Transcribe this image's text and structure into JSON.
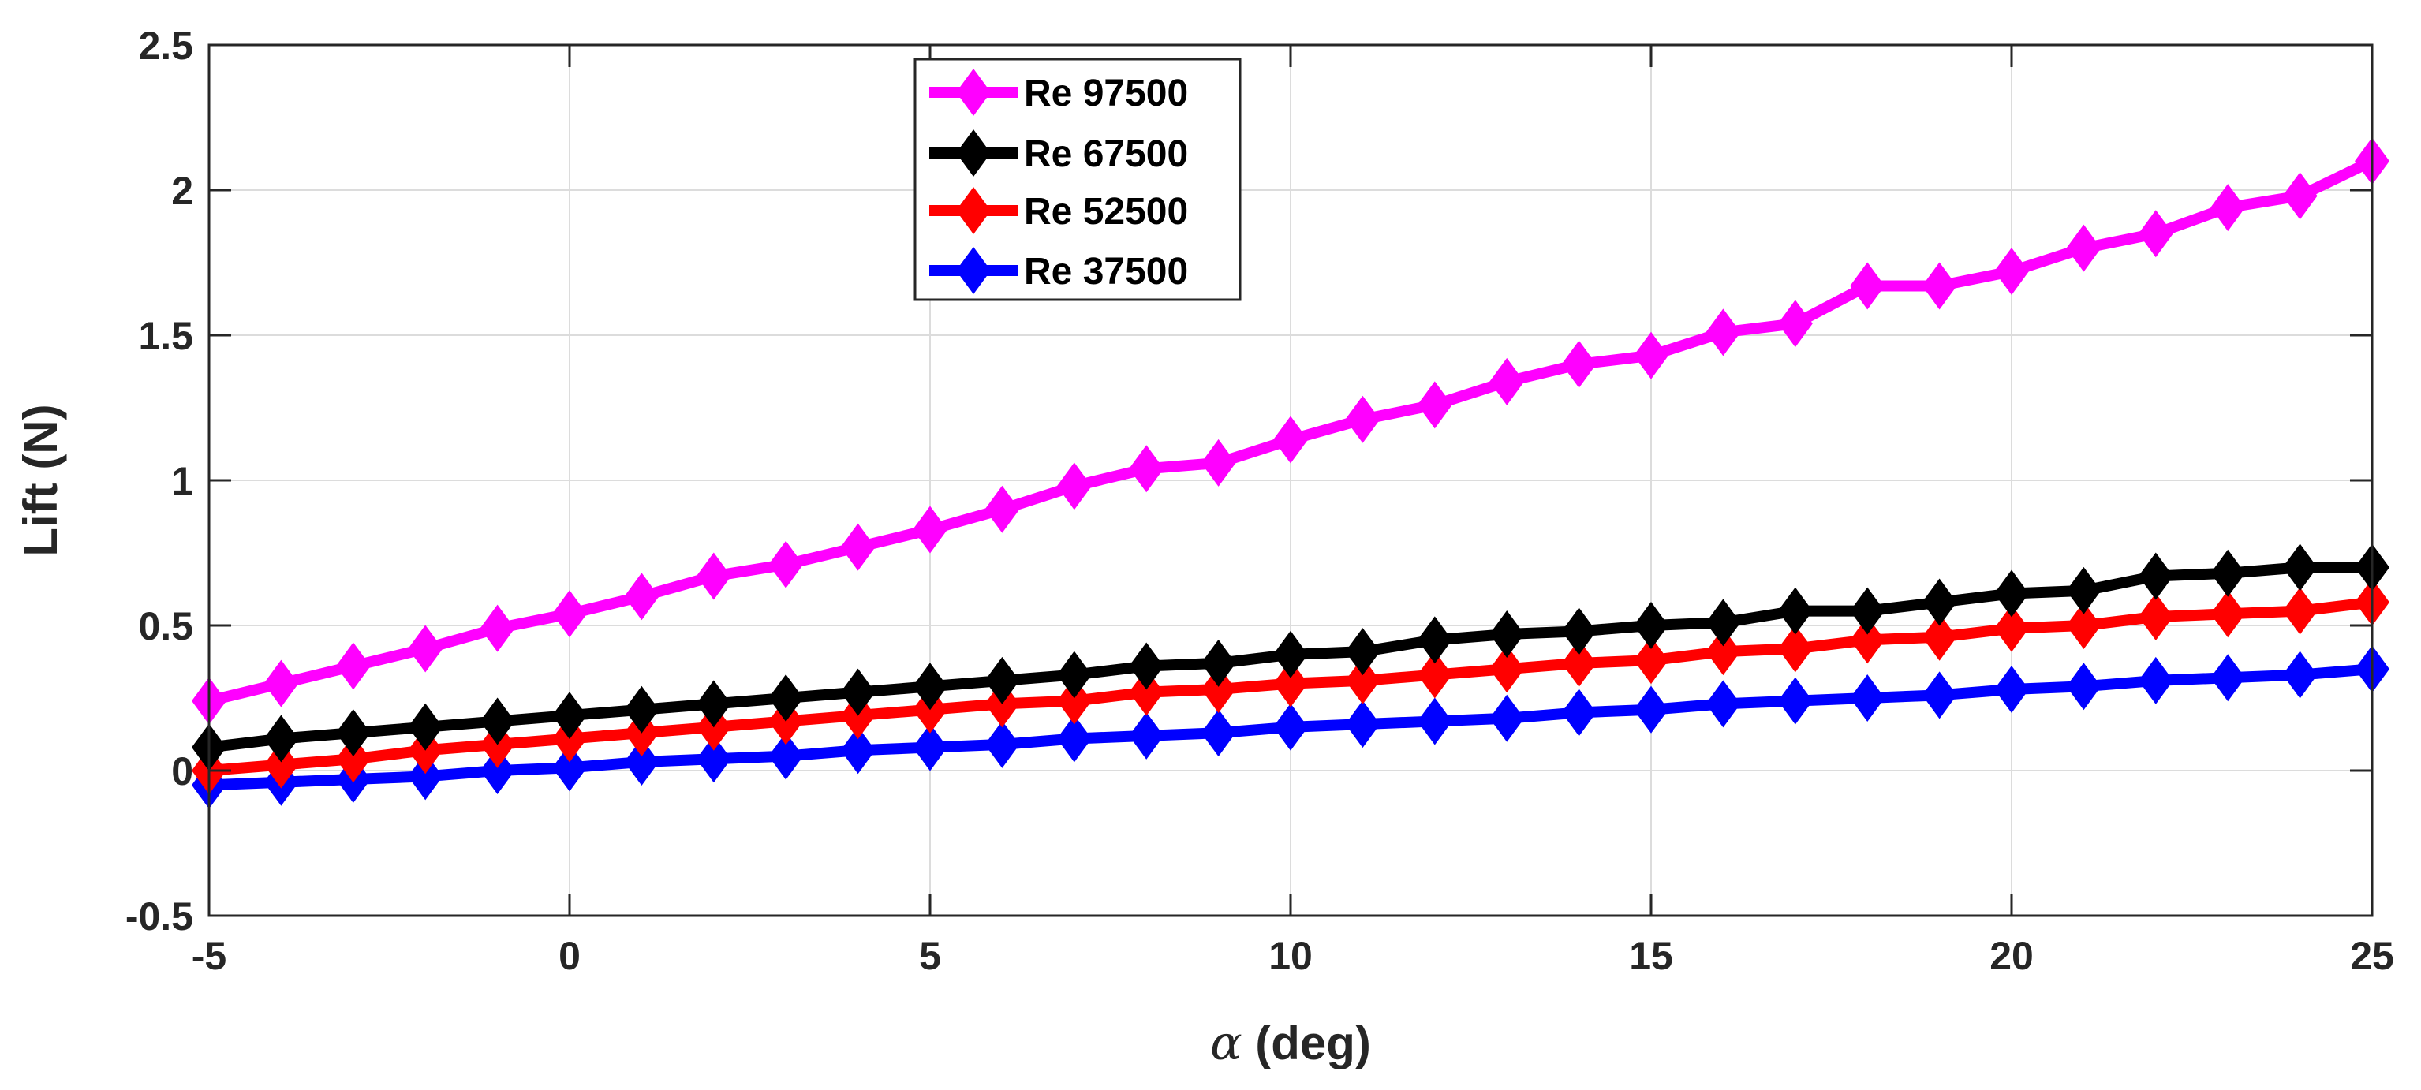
{
  "chart_data": {
    "type": "line",
    "title": "",
    "xlabel_symbol": "α",
    "xlabel_text": "(deg)",
    "ylabel": "Lift (N)",
    "xlim": [
      -5,
      25
    ],
    "ylim": [
      -0.5,
      2.5
    ],
    "xticks": [
      -5,
      0,
      5,
      10,
      15,
      20,
      25
    ],
    "yticks": [
      -0.5,
      0,
      0.5,
      1,
      1.5,
      2,
      2.5
    ],
    "xtick_labels": [
      "-5",
      "0",
      "5",
      "10",
      "15",
      "20",
      "25"
    ],
    "ytick_labels": [
      "-0.5",
      "0",
      "0.5",
      "1",
      "1.5",
      "2",
      "2.5"
    ],
    "grid": true,
    "legend_position": "top-center",
    "x": [
      -5,
      -4,
      -3,
      -2,
      -1,
      0,
      1,
      2,
      3,
      4,
      5,
      6,
      7,
      8,
      9,
      10,
      11,
      12,
      13,
      14,
      15,
      16,
      17,
      18,
      19,
      20,
      21,
      22,
      23,
      24,
      25
    ],
    "series": [
      {
        "name": "Re 97500",
        "color": "#ff00ff",
        "values": [
          0.24,
          0.3,
          0.36,
          0.42,
          0.49,
          0.54,
          0.6,
          0.67,
          0.71,
          0.77,
          0.83,
          0.9,
          0.98,
          1.04,
          1.06,
          1.14,
          1.21,
          1.26,
          1.34,
          1.4,
          1.43,
          1.51,
          1.54,
          1.67,
          1.67,
          1.72,
          1.8,
          1.85,
          1.94,
          1.98,
          2.1
        ]
      },
      {
        "name": "Re 67500",
        "color": "#000000",
        "values": [
          0.08,
          0.11,
          0.13,
          0.15,
          0.17,
          0.19,
          0.21,
          0.23,
          0.25,
          0.27,
          0.29,
          0.31,
          0.33,
          0.36,
          0.37,
          0.4,
          0.41,
          0.45,
          0.47,
          0.48,
          0.5,
          0.51,
          0.55,
          0.55,
          0.58,
          0.61,
          0.62,
          0.67,
          0.68,
          0.7,
          0.7
        ]
      },
      {
        "name": "Re 52500",
        "color": "#ff0000",
        "values": [
          0.0,
          0.02,
          0.04,
          0.07,
          0.09,
          0.11,
          0.13,
          0.15,
          0.17,
          0.19,
          0.21,
          0.23,
          0.24,
          0.27,
          0.28,
          0.3,
          0.31,
          0.33,
          0.35,
          0.37,
          0.38,
          0.41,
          0.42,
          0.45,
          0.46,
          0.49,
          0.5,
          0.53,
          0.54,
          0.55,
          0.58
        ]
      },
      {
        "name": "Re 37500",
        "color": "#0000ff",
        "values": [
          -0.05,
          -0.04,
          -0.03,
          -0.02,
          0.0,
          0.01,
          0.03,
          0.04,
          0.05,
          0.07,
          0.08,
          0.09,
          0.11,
          0.12,
          0.13,
          0.15,
          0.16,
          0.17,
          0.18,
          0.2,
          0.21,
          0.23,
          0.24,
          0.25,
          0.26,
          0.28,
          0.29,
          0.31,
          0.32,
          0.33,
          0.35
        ]
      }
    ]
  }
}
